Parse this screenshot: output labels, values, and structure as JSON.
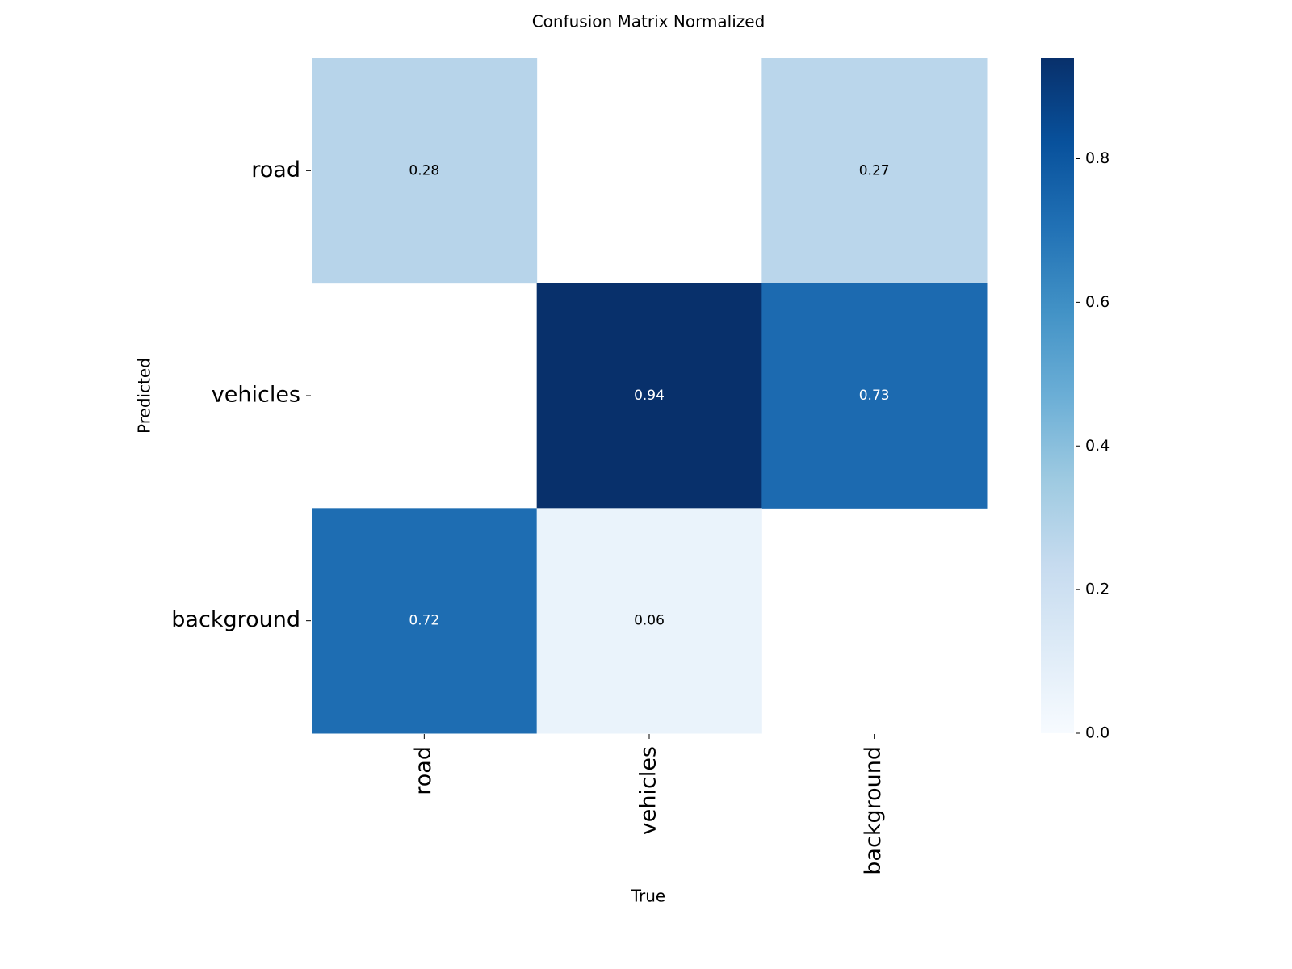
{
  "chart_data": {
    "type": "heatmap",
    "title": "Confusion Matrix Normalized",
    "xlabel": "True",
    "ylabel": "Predicted",
    "x_categories": [
      "road",
      "vehicles",
      "background"
    ],
    "y_categories": [
      "road",
      "vehicles",
      "background"
    ],
    "values": [
      [
        0.28,
        null,
        0.27
      ],
      [
        null,
        0.94,
        0.73
      ],
      [
        0.72,
        0.06,
        null
      ]
    ],
    "colormap": "Blues",
    "clim": [
      0,
      0.94
    ],
    "cticks": [
      {
        "value": 0,
        "label": "0.0"
      },
      0.2,
      0.4,
      0.6,
      0.8
    ]
  }
}
